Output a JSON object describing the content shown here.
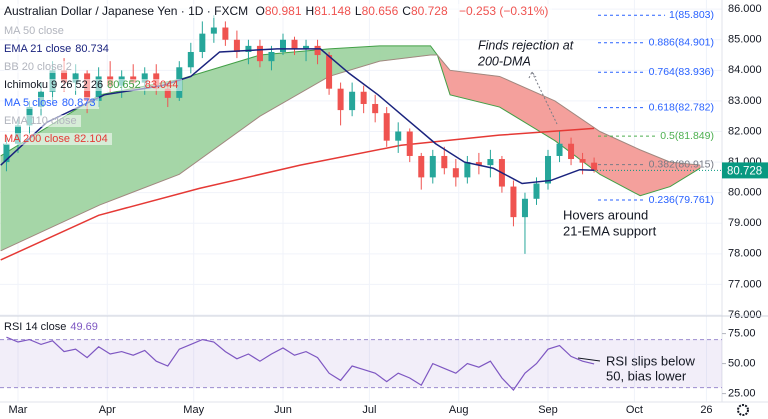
{
  "header": {
    "symbol": "Australian Dollar / Japanese Yen · 1D · FXCM",
    "ohlc": [
      {
        "key": "O",
        "value": 80.981
      },
      {
        "key": "H",
        "value": 81.148
      },
      {
        "key": "L",
        "value": 80.656
      },
      {
        "key": "C",
        "value": 80.728
      }
    ],
    "change": "−0.253 (−0.31%)",
    "color": "#ef5350"
  },
  "chart_data": [
    {
      "type": "candlestick",
      "open": [
        81.0,
        81.6,
        82.2,
        82.8,
        83.3,
        84.0,
        83.6,
        83.9,
        83.0,
        83.8,
        83.5,
        83.8,
        83.6,
        83.9,
        83.4,
        83.1,
        84.1,
        84.6,
        85.2,
        85.4,
        85.0,
        84.6,
        84.8,
        84.3,
        84.6,
        85.0,
        84.7,
        84.8,
        84.5,
        83.4,
        82.7,
        83.3,
        82.9,
        82.6,
        81.7,
        82.0,
        81.2,
        80.5,
        81.2,
        80.8,
        80.5,
        81.0,
        80.9,
        81.1,
        80.2,
        79.2,
        79.8,
        80.3,
        81.2,
        81.6,
        81.1,
        80.981
      ],
      "high": [
        81.8,
        82.4,
        83.0,
        83.6,
        84.3,
        84.4,
        84.2,
        84.0,
        84.1,
        84.3,
        84.0,
        84.2,
        84.1,
        84.2,
        83.6,
        84.3,
        84.9,
        85.6,
        85.8,
        85.6,
        85.3,
        85.0,
        85.0,
        84.8,
        85.2,
        85.1,
        85.0,
        85.0,
        84.6,
        83.6,
        83.6,
        83.5,
        83.2,
        82.8,
        82.3,
        82.1,
        81.3,
        81.4,
        81.5,
        81.1,
        81.2,
        81.3,
        81.4,
        81.2,
        80.4,
        80.0,
        80.5,
        81.4,
        82.0,
        81.8,
        81.3,
        81.148
      ],
      "low": [
        80.7,
        81.3,
        81.9,
        82.5,
        83.0,
        83.3,
        83.2,
        82.6,
        82.8,
        83.3,
        83.1,
        83.4,
        83.2,
        83.2,
        82.8,
        83.0,
        83.9,
        84.4,
        84.9,
        84.8,
        84.4,
        84.2,
        84.1,
        84.0,
        84.5,
        84.5,
        84.3,
        84.2,
        83.2,
        82.2,
        82.5,
        82.6,
        82.3,
        81.5,
        81.3,
        81.0,
        80.1,
        80.3,
        80.6,
        80.2,
        80.3,
        80.6,
        80.5,
        80.0,
        78.9,
        78.0,
        79.6,
        80.1,
        81.0,
        80.9,
        80.6,
        80.656
      ],
      "close": [
        81.6,
        82.2,
        82.8,
        83.3,
        84.0,
        83.6,
        83.9,
        83.0,
        83.8,
        83.5,
        83.8,
        83.6,
        83.9,
        83.4,
        83.1,
        84.1,
        84.6,
        85.2,
        85.4,
        85.0,
        84.6,
        84.8,
        84.3,
        84.6,
        85.0,
        84.7,
        84.8,
        84.5,
        83.4,
        82.7,
        83.3,
        82.9,
        82.6,
        81.7,
        82.0,
        81.2,
        80.5,
        81.2,
        80.8,
        80.5,
        81.0,
        80.9,
        81.1,
        80.2,
        79.2,
        79.8,
        80.3,
        81.2,
        81.6,
        81.1,
        80.981,
        80.728
      ],
      "up_color": "#26a69a",
      "down_color": "#ef5350",
      "xlim": [
        -0.56,
        62.1
      ],
      "xticks": [
        {
          "value": 1,
          "label": "Mar"
        },
        {
          "value": 8.75,
          "label": "Apr"
        },
        {
          "value": 16.25,
          "label": "May"
        },
        {
          "value": 24,
          "label": "Jun"
        },
        {
          "value": 31.5,
          "label": "Jul"
        },
        {
          "value": 39.25,
          "label": "Aug"
        },
        {
          "value": 47,
          "label": "Sep"
        },
        {
          "value": 54.5,
          "label": "Oct"
        },
        {
          "value": 60.75,
          "label": "26"
        }
      ],
      "ylim": [
        76,
        86.3
      ],
      "yticks": [
        {
          "value": 86,
          "label": "86.000"
        },
        {
          "value": 85,
          "label": "85.000"
        },
        {
          "value": 84,
          "label": "84.000"
        },
        {
          "value": 83,
          "label": "83.000"
        },
        {
          "value": 82,
          "label": "82.000"
        },
        {
          "value": 81,
          "label": "81.000"
        },
        {
          "value": 80,
          "label": "80.000"
        },
        {
          "value": 79,
          "label": "79.000"
        },
        {
          "value": 78,
          "label": "78.000"
        },
        {
          "value": 77,
          "label": "77.000"
        },
        {
          "value": 76,
          "label": "76.000"
        }
      ],
      "last_color": "#089981",
      "overlays": [
        {
          "color": "#e53935",
          "x": [
            -0.5,
            8,
            16.75,
            25.5,
            34.25,
            42.75,
            51
          ],
          "values": [
            77.8,
            79.26,
            80.14,
            80.9,
            81.55,
            81.88,
            82.104
          ]
        },
        {
          "color": "#1a237e",
          "x": [
            -0.5,
            3.5,
            8.5,
            13.5,
            16,
            18.5,
            23.5,
            27.25,
            29.75,
            32.25,
            34.75,
            37.25,
            39.75,
            42.25,
            44.75,
            47.25,
            49.75,
            51
          ],
          "values": [
            80.9,
            82.3,
            83.2,
            83.5,
            83.8,
            84.6,
            84.7,
            84.7,
            83.9,
            83.2,
            82.4,
            81.6,
            81.0,
            80.8,
            80.3,
            80.4,
            80.75,
            80.734
          ]
        }
      ],
      "cloud": {
        "x": [
          -0.5,
          8.1,
          15,
          22,
          28,
          32.4,
          36.8,
          37.4,
          38.5,
          42.8,
          47.6,
          51.5,
          55,
          57.6,
          60.2
        ],
        "span_a": [
          81.2,
          83.2,
          83.7,
          84.5,
          84.7,
          84.8,
          84.8,
          84.5,
          83.2,
          82.8,
          81.7,
          80.6,
          79.9,
          80.2,
          80.8
        ],
        "span_b": [
          78.1,
          79.6,
          80.6,
          82.5,
          83.8,
          84.3,
          84.5,
          84.5,
          84.0,
          83.8,
          83.0,
          82.0,
          81.4,
          81.0,
          80.9
        ],
        "up_color": "#a5d6a7",
        "down_color": "#f4a09c",
        "a_color": "#43a047",
        "b_color": "#a1887f"
      },
      "fib_levels": [
        {
          "value": 85.803,
          "label": "1(85.803)",
          "color": "#2962ff"
        },
        {
          "value": 84.901,
          "label": "0.886(84.901)",
          "color": "#2962ff"
        },
        {
          "value": 83.936,
          "label": "0.764(83.936)",
          "color": "#2962ff"
        },
        {
          "value": 82.782,
          "label": "0.618(82.782)",
          "color": "#2962ff"
        },
        {
          "value": 81.849,
          "label": "0.5(81.849)",
          "color": "#4caf50"
        },
        {
          "value": 80.915,
          "label": "0.382(80.915)",
          "color": "#787b86"
        },
        {
          "value": 79.761,
          "label": "0.236(79.761)",
          "color": "#2962ff"
        }
      ],
      "annotations": [
        {
          "lines": [
            "Finds rejection at",
            "200-DMA"
          ]
        },
        {
          "lines": [
            "Hovers around",
            "21-EMA support"
          ]
        }
      ],
      "legend": [
        {
          "name": "MA 50 close",
          "color": "#b2b5be"
        },
        {
          "name": "EMA 21 close",
          "value": 80.734,
          "color": "#1a237e"
        },
        {
          "name": "BB 20 close 2",
          "color": "#b2b5be"
        },
        {
          "name": "Ichimoku 9 26 52 26",
          "values": [
            {
              "value": 80.652,
              "color": "#43a047"
            },
            {
              "value": 83.044,
              "color": "#e53935"
            }
          ]
        },
        {
          "name": "MA 5 close",
          "value": 80.873,
          "color": "#2962ff"
        },
        {
          "name": "EMA 110 close",
          "color": "#b2b5be"
        },
        {
          "name": "MA 200 close",
          "value": 82.104,
          "color": "#e53935"
        }
      ]
    },
    {
      "type": "line",
      "color": "#7e57c2",
      "values": [
        72,
        68,
        70,
        66,
        69,
        60,
        62,
        55,
        64,
        58,
        60,
        57,
        61,
        52,
        48,
        62,
        66,
        70,
        68,
        60,
        54,
        58,
        52,
        58,
        63,
        57,
        60,
        55,
        42,
        36,
        48,
        45,
        42,
        35,
        42,
        38,
        32,
        50,
        46,
        42,
        50,
        47,
        52,
        38,
        28,
        42,
        50,
        62,
        65,
        56,
        52,
        49.69
      ],
      "ylim": [
        18,
        88
      ],
      "yticks": [
        {
          "value": 75,
          "label": "75.00"
        },
        {
          "value": 50,
          "label": "50.00"
        },
        {
          "value": 25,
          "label": "25.00"
        }
      ],
      "band": [
        30,
        70
      ],
      "legend": {
        "name": "RSI 14 close",
        "value": 49.69
      },
      "annotation": {
        "lines": [
          "RSI slips below",
          "50, bias lower"
        ]
      }
    }
  ]
}
